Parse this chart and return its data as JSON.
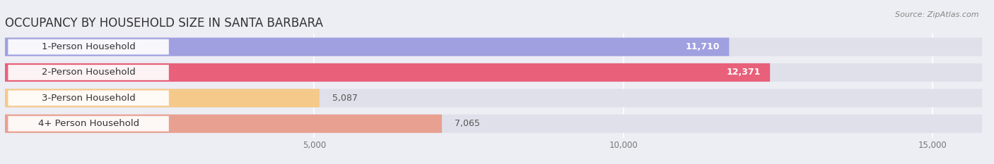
{
  "title": "OCCUPANCY BY HOUSEHOLD SIZE IN SANTA BARBARA",
  "source": "Source: ZipAtlas.com",
  "categories": [
    "1-Person Household",
    "2-Person Household",
    "3-Person Household",
    "4+ Person Household"
  ],
  "values": [
    11710,
    12371,
    5087,
    7065
  ],
  "bar_colors": [
    "#a0a0e0",
    "#e8607a",
    "#f5c98a",
    "#e8a090"
  ],
  "background_color": "#ededf4",
  "bar_background_color": "#e0e0ea",
  "xlim": [
    0,
    15800
  ],
  "xticks": [
    5000,
    10000,
    15000
  ],
  "xtick_labels": [
    "5,000",
    "10,000",
    "15,000"
  ],
  "title_fontsize": 12,
  "label_fontsize": 9.5,
  "value_fontsize": 9
}
